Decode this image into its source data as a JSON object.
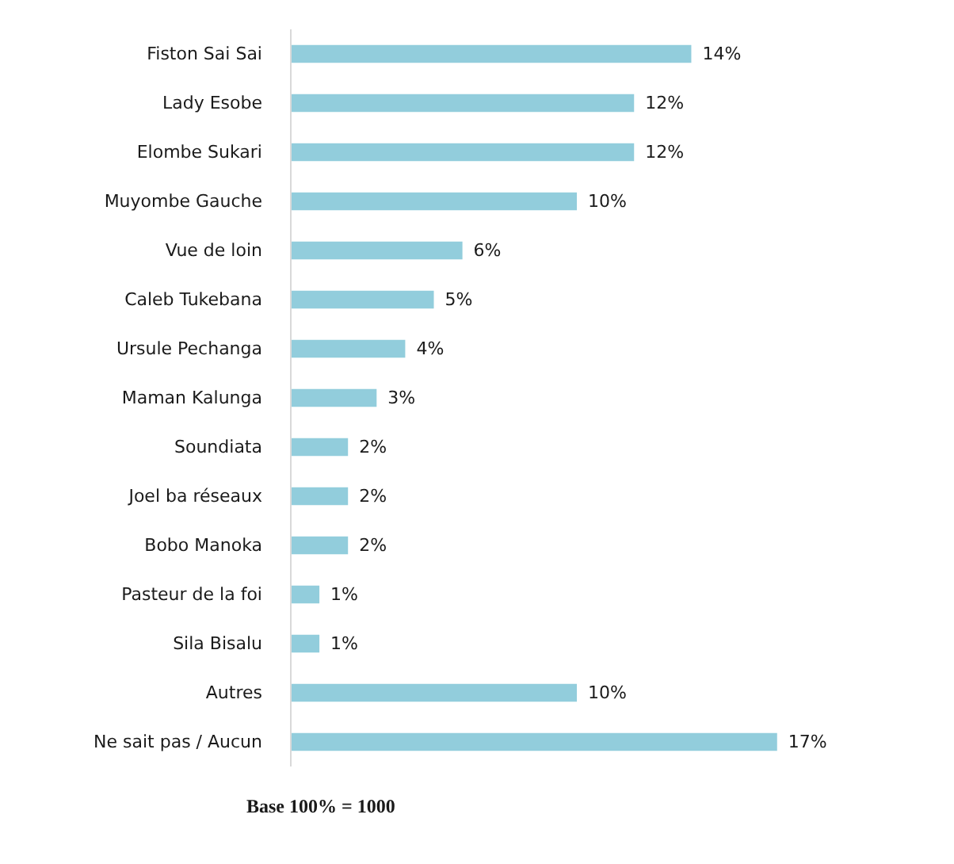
{
  "chart_data": {
    "type": "bar",
    "orientation": "horizontal",
    "categories": [
      "Fiston Sai Sai",
      "Lady Esobe",
      "Elombe Sukari",
      "Muyombe Gauche",
      "Vue de loin",
      "Caleb Tukebana",
      "Ursule Pechanga",
      "Maman Kalunga",
      "Soundiata",
      "Joel ba réseaux",
      "Bobo Manoka",
      "Pasteur de la foi",
      "Sila Bisalu",
      "Autres",
      "Ne sait pas / Aucun"
    ],
    "values": [
      14,
      12,
      12,
      10,
      6,
      5,
      4,
      3,
      2,
      2,
      2,
      1,
      1,
      10,
      17
    ],
    "value_labels": [
      "14%",
      "12%",
      "12%",
      "10%",
      "6%",
      "5%",
      "4%",
      "3%",
      "2%",
      "2%",
      "2%",
      "1%",
      "1%",
      "10%",
      "17%"
    ],
    "color": "#92cddc",
    "tick_labels": "y",
    "grid": false,
    "annotations": [
      "Base 100% = 1000"
    ]
  }
}
